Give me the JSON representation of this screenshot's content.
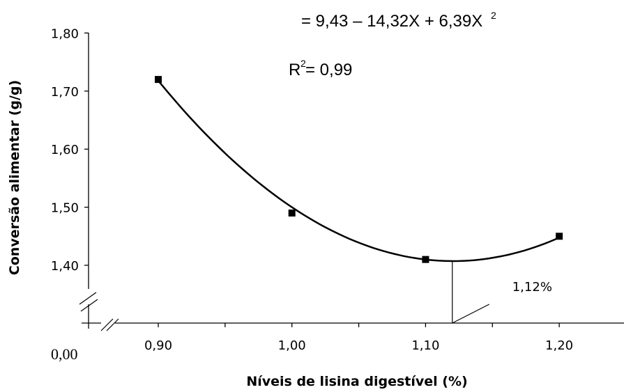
{
  "chart_data": {
    "type": "scatter",
    "equation_text": "= 9,43 – 14,32X + 6,39X",
    "equation_exponent": "2",
    "r2_prefix": "R",
    "r2_exponent": "2",
    "r2_suffix": " = 0,99",
    "xlabel": "Níveis de lisina digestível (%)",
    "ylabel": "Conversão alimentar (g/g)",
    "origin_label": "0,00",
    "x_ticks": [
      0.9,
      0.95,
      1.0,
      1.05,
      1.1,
      1.15,
      1.2,
      1.25
    ],
    "x_tick_labels": [
      "0,90",
      "1,00",
      "1,10",
      "1,20"
    ],
    "x_tick_label_values": [
      0.9,
      1.0,
      1.1,
      1.2
    ],
    "y_ticks": [
      1.4,
      1.5,
      1.6,
      1.7,
      1.8
    ],
    "y_tick_labels": [
      "1,40",
      "1,50",
      "1,60",
      "1,70",
      "1,80"
    ],
    "xlim": [
      0.9,
      1.25
    ],
    "ylim": [
      1.3,
      1.8
    ],
    "points": [
      {
        "x": 0.9,
        "y": 1.72
      },
      {
        "x": 1.0,
        "y": 1.49
      },
      {
        "x": 1.1,
        "y": 1.41
      },
      {
        "x": 1.2,
        "y": 1.45
      }
    ],
    "fit": {
      "a": 9.43,
      "b": -14.32,
      "c": 6.39
    },
    "optimum": {
      "x": 1.12,
      "label": "1,12%"
    }
  }
}
